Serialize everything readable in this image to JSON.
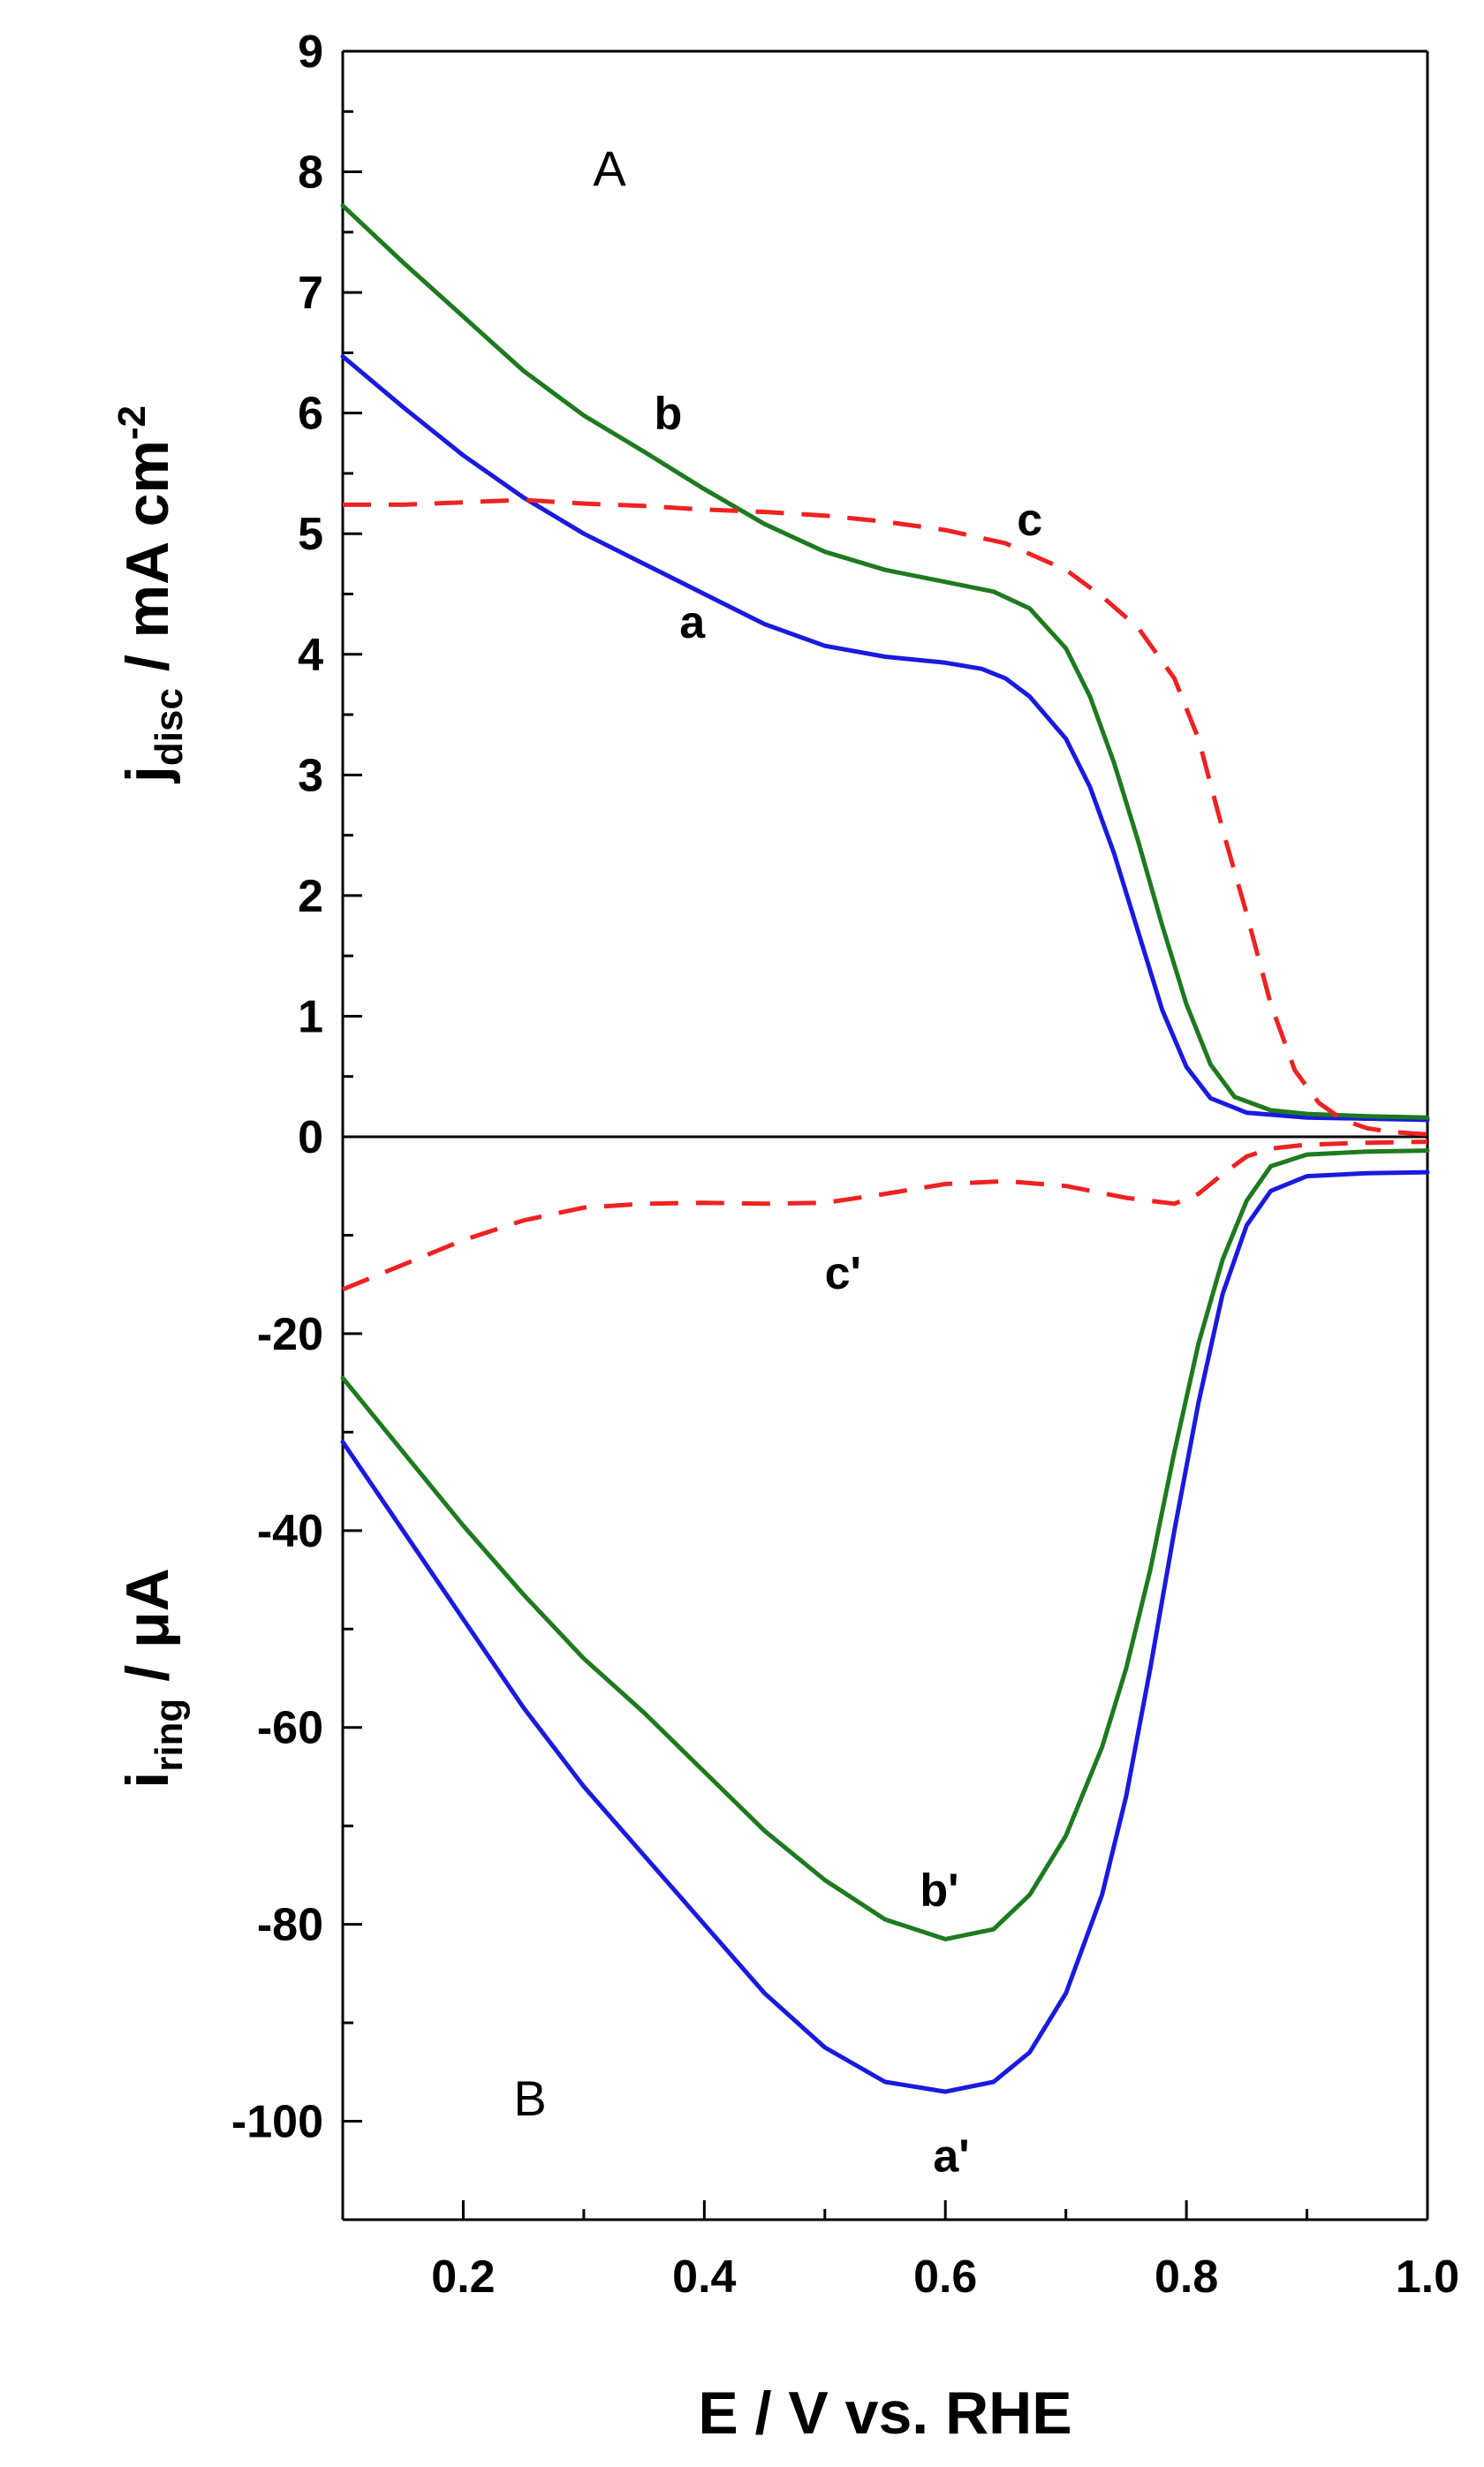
{
  "chart_data": {
    "type": "line",
    "xlabel": "E / V vs. RHE",
    "xlim": [
      0.1,
      1.0
    ],
    "x_ticks": [
      "0.2",
      "0.4",
      "0.6",
      "0.8",
      "1.0"
    ],
    "colors": {
      "a": "#1a1adf",
      "b": "#1e7a1e",
      "c": "#ee2222",
      "axis": "#000000"
    },
    "panels": [
      {
        "id": "A",
        "panel_label": "A",
        "ylabel_main": "j",
        "ylabel_sub": "disc",
        "ylabel_rest": " / mA cm",
        "ylabel_sup": "-2",
        "ylim": [
          0,
          9
        ],
        "y_ticks": [
          "0",
          "1",
          "2",
          "3",
          "4",
          "5",
          "6",
          "7",
          "8",
          "9"
        ],
        "series": [
          {
            "name": "a",
            "label": "a",
            "style": "solid",
            "points": [
              [
                0.1,
                6.47
              ],
              [
                0.15,
                6.05
              ],
              [
                0.2,
                5.65
              ],
              [
                0.25,
                5.3
              ],
              [
                0.3,
                5.0
              ],
              [
                0.35,
                4.75
              ],
              [
                0.4,
                4.5
              ],
              [
                0.45,
                4.25
              ],
              [
                0.5,
                4.07
              ],
              [
                0.55,
                3.98
              ],
              [
                0.6,
                3.93
              ],
              [
                0.63,
                3.88
              ],
              [
                0.65,
                3.8
              ],
              [
                0.67,
                3.65
              ],
              [
                0.7,
                3.3
              ],
              [
                0.72,
                2.9
              ],
              [
                0.74,
                2.35
              ],
              [
                0.76,
                1.7
              ],
              [
                0.78,
                1.05
              ],
              [
                0.8,
                0.58
              ],
              [
                0.82,
                0.32
              ],
              [
                0.85,
                0.2
              ],
              [
                0.9,
                0.16
              ],
              [
                0.95,
                0.15
              ],
              [
                1.0,
                0.14
              ]
            ],
            "label_at": [
              0.39,
              4.27
            ]
          },
          {
            "name": "b",
            "label": "b",
            "style": "solid",
            "points": [
              [
                0.1,
                7.72
              ],
              [
                0.15,
                7.25
              ],
              [
                0.2,
                6.8
              ],
              [
                0.25,
                6.35
              ],
              [
                0.3,
                5.98
              ],
              [
                0.35,
                5.68
              ],
              [
                0.4,
                5.37
              ],
              [
                0.45,
                5.08
              ],
              [
                0.5,
                4.85
              ],
              [
                0.55,
                4.7
              ],
              [
                0.6,
                4.6
              ],
              [
                0.64,
                4.52
              ],
              [
                0.67,
                4.38
              ],
              [
                0.7,
                4.05
              ],
              [
                0.72,
                3.65
              ],
              [
                0.74,
                3.1
              ],
              [
                0.76,
                2.45
              ],
              [
                0.78,
                1.75
              ],
              [
                0.8,
                1.1
              ],
              [
                0.82,
                0.6
              ],
              [
                0.84,
                0.33
              ],
              [
                0.87,
                0.22
              ],
              [
                0.9,
                0.19
              ],
              [
                0.95,
                0.17
              ],
              [
                1.0,
                0.16
              ]
            ],
            "label_at": [
              0.37,
              6.0
            ]
          },
          {
            "name": "c",
            "label": "c",
            "style": "dashed",
            "points": [
              [
                0.1,
                5.24
              ],
              [
                0.15,
                5.24
              ],
              [
                0.2,
                5.26
              ],
              [
                0.25,
                5.28
              ],
              [
                0.3,
                5.25
              ],
              [
                0.35,
                5.23
              ],
              [
                0.4,
                5.2
              ],
              [
                0.45,
                5.18
              ],
              [
                0.5,
                5.15
              ],
              [
                0.55,
                5.1
              ],
              [
                0.6,
                5.03
              ],
              [
                0.65,
                4.92
              ],
              [
                0.7,
                4.7
              ],
              [
                0.73,
                4.48
              ],
              [
                0.76,
                4.22
              ],
              [
                0.79,
                3.8
              ],
              [
                0.81,
                3.3
              ],
              [
                0.83,
                2.55
              ],
              [
                0.85,
                1.85
              ],
              [
                0.87,
                1.1
              ],
              [
                0.89,
                0.55
              ],
              [
                0.91,
                0.28
              ],
              [
                0.93,
                0.14
              ],
              [
                0.95,
                0.07
              ],
              [
                0.97,
                0.04
              ],
              [
                1.0,
                0.02
              ]
            ],
            "label_at": [
              0.67,
              5.12
            ]
          }
        ]
      },
      {
        "id": "B",
        "panel_label": "B",
        "ylabel_main": "i",
        "ylabel_sub": "ring",
        "ylabel_rest": " / μA",
        "ylim": [
          -110,
          0
        ],
        "y_ticks": [
          "0",
          "-20",
          "-40",
          "-60",
          "-80",
          "-100"
        ],
        "y_tick_values": [
          0,
          -20,
          -40,
          -60,
          -80,
          -100
        ],
        "series": [
          {
            "name": "a'",
            "label": "a'",
            "style": "solid",
            "points": [
              [
                0.1,
                -31
              ],
              [
                0.15,
                -40
              ],
              [
                0.2,
                -49
              ],
              [
                0.25,
                -58
              ],
              [
                0.3,
                -66
              ],
              [
                0.35,
                -73
              ],
              [
                0.4,
                -80
              ],
              [
                0.45,
                -87
              ],
              [
                0.5,
                -92.5
              ],
              [
                0.55,
                -96
              ],
              [
                0.6,
                -97
              ],
              [
                0.64,
                -96
              ],
              [
                0.67,
                -93
              ],
              [
                0.7,
                -87
              ],
              [
                0.73,
                -77
              ],
              [
                0.75,
                -67
              ],
              [
                0.77,
                -54
              ],
              [
                0.79,
                -40
              ],
              [
                0.81,
                -27
              ],
              [
                0.83,
                -16
              ],
              [
                0.85,
                -9
              ],
              [
                0.87,
                -5.5
              ],
              [
                0.9,
                -4
              ],
              [
                0.95,
                -3.7
              ],
              [
                1.0,
                -3.6
              ]
            ],
            "label_at": [
              0.605,
              -103.5
            ]
          },
          {
            "name": "b'",
            "label": "b'",
            "style": "solid",
            "points": [
              [
                0.1,
                -24.5
              ],
              [
                0.15,
                -32
              ],
              [
                0.2,
                -39.5
              ],
              [
                0.25,
                -46.5
              ],
              [
                0.3,
                -53
              ],
              [
                0.35,
                -58.5
              ],
              [
                0.4,
                -64.5
              ],
              [
                0.45,
                -70.5
              ],
              [
                0.5,
                -75.5
              ],
              [
                0.55,
                -79.5
              ],
              [
                0.6,
                -81.5
              ],
              [
                0.64,
                -80.5
              ],
              [
                0.67,
                -77
              ],
              [
                0.7,
                -71
              ],
              [
                0.73,
                -62
              ],
              [
                0.75,
                -54
              ],
              [
                0.77,
                -44
              ],
              [
                0.79,
                -32
              ],
              [
                0.81,
                -21
              ],
              [
                0.83,
                -12.5
              ],
              [
                0.85,
                -6.5
              ],
              [
                0.87,
                -3
              ],
              [
                0.9,
                -1.8
              ],
              [
                0.95,
                -1.5
              ],
              [
                1.0,
                -1.4
              ]
            ],
            "label_at": [
              0.595,
              -76.5
            ]
          },
          {
            "name": "c'",
            "label": "c'",
            "style": "dashed",
            "points": [
              [
                0.1,
                -15.5
              ],
              [
                0.15,
                -13
              ],
              [
                0.2,
                -10.5
              ],
              [
                0.25,
                -8.5
              ],
              [
                0.3,
                -7.2
              ],
              [
                0.35,
                -6.8
              ],
              [
                0.4,
                -6.7
              ],
              [
                0.45,
                -6.8
              ],
              [
                0.5,
                -6.7
              ],
              [
                0.55,
                -5.8
              ],
              [
                0.6,
                -4.8
              ],
              [
                0.65,
                -4.5
              ],
              [
                0.7,
                -5
              ],
              [
                0.75,
                -6.2
              ],
              [
                0.79,
                -6.8
              ],
              [
                0.81,
                -5.8
              ],
              [
                0.83,
                -3.8
              ],
              [
                0.85,
                -2
              ],
              [
                0.87,
                -1.2
              ],
              [
                0.9,
                -0.8
              ],
              [
                0.95,
                -0.6
              ],
              [
                1.0,
                -0.5
              ]
            ],
            "label_at": [
              0.515,
              -13.8
            ]
          }
        ]
      }
    ]
  }
}
